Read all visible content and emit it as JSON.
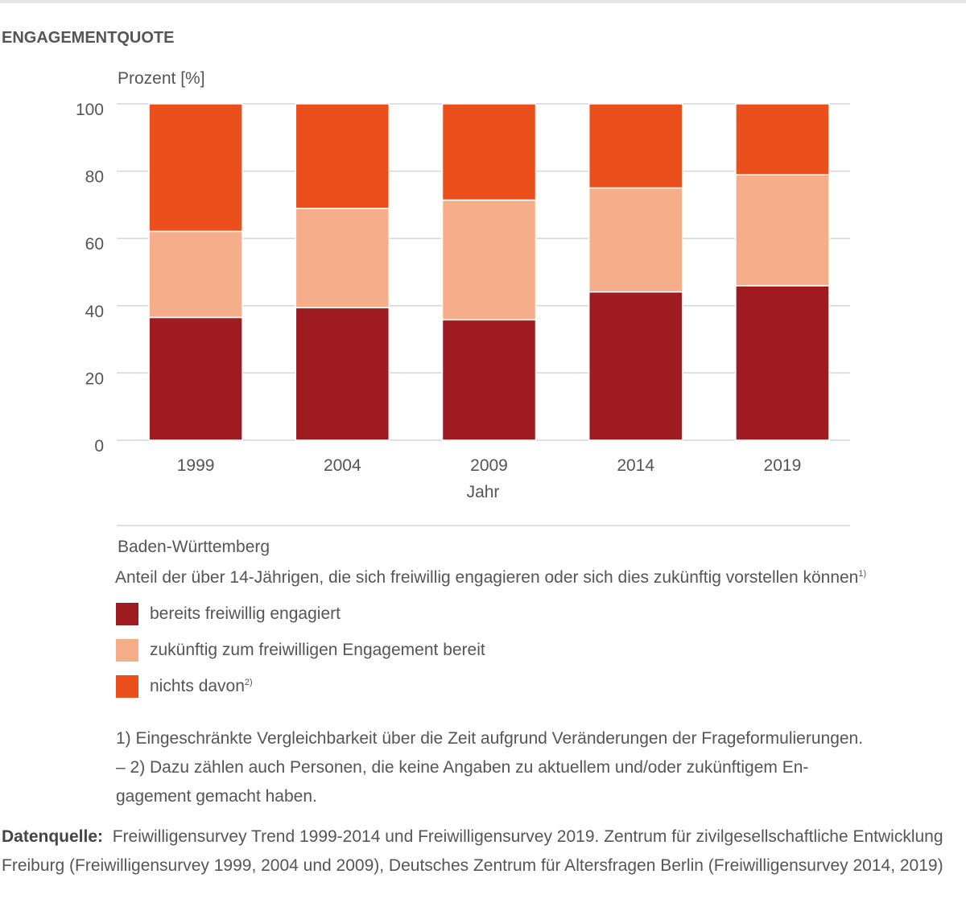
{
  "title": "ENGAGEMENTQUOTE",
  "chart_data": {
    "type": "bar",
    "stacked": true,
    "ylabel": "Prozent [%]",
    "xlabel": "Jahr",
    "categories": [
      "1999",
      "2004",
      "2009",
      "2014",
      "2019"
    ],
    "ylim": [
      0,
      100
    ],
    "yticks": [
      0,
      20,
      40,
      60,
      80,
      100
    ],
    "grid": true,
    "series": [
      {
        "name": "bereits freiwillig engagiert",
        "color": "#9e1b22",
        "values": [
          36.5,
          39.4,
          35.8,
          44.1,
          45.9
        ]
      },
      {
        "name": "zukünftig zum freiwilligen Engagement bereit",
        "color": "#f5ae89",
        "values": [
          25.6,
          29.5,
          35.6,
          30.9,
          33.0
        ]
      },
      {
        "name": "nichts davon",
        "name_sup": "2)",
        "color": "#ea4f1c",
        "values": [
          37.9,
          31.1,
          28.6,
          25.0,
          21.1
        ]
      }
    ],
    "legend_placement": "bottom"
  },
  "region": "Baden-Württemberg",
  "subtitle": "Anteil der über 14-Jährigen, die sich freiwillig engagieren oder sich dies zukünftig vorstellen können",
  "subtitle_sup": "1)",
  "footnote": "1) Eingeschränkte Vergleichbarkeit über die Zeit aufgrund Veränderungen der Frageformulierun­gen. – 2) Dazu zählen auch Personen, die keine Angaben zu aktuellem und/oder zukünftigem En­gagement gemacht haben.",
  "source_label": "Datenquelle:",
  "source_text": "Freiwilligensurvey Trend 1999-2014 und Freiwilligensurvey 2019. Zentrum für zivilgesellschaftliche Entwicklung Freiburg (Freiwilligensurvey 1999, 2004 und 2009), Deutsches Zentrum für Altersfragen Berlin (Freiwilligensurvey 2014, 2019)"
}
